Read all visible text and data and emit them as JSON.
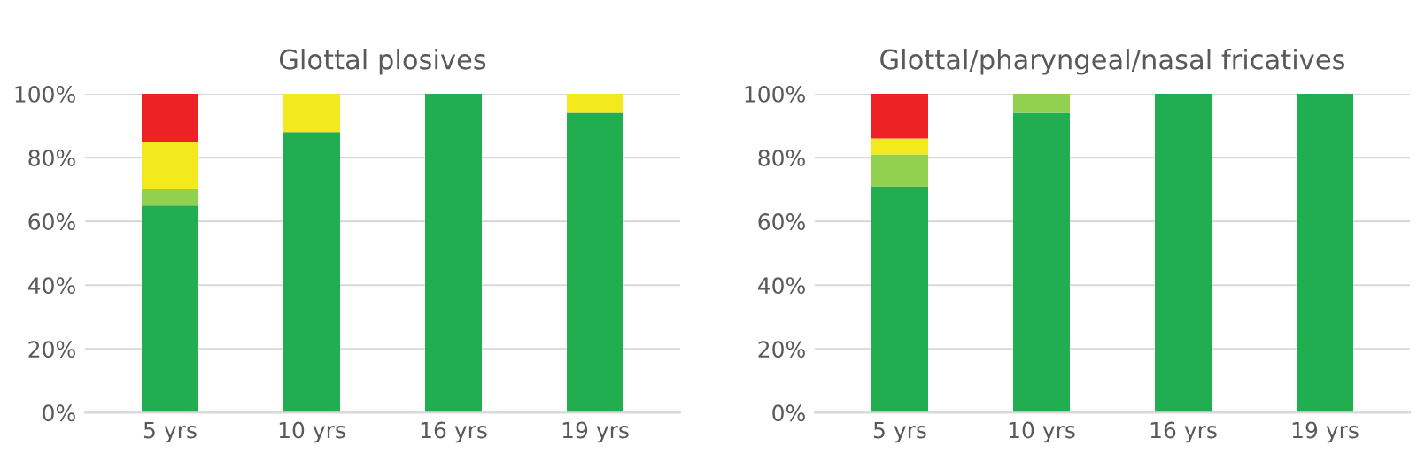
{
  "chart_data": [
    {
      "type": "bar",
      "title": "Glottal plosives",
      "stacked": true,
      "categories": [
        "5 yrs",
        "10 yrs",
        "16 yrs",
        "19 yrs"
      ],
      "series": [
        {
          "color": "#21ae50",
          "values": [
            65,
            88,
            100,
            94
          ]
        },
        {
          "color": "#92d050",
          "values": [
            5,
            null,
            null,
            null
          ]
        },
        {
          "color": "#f2ea1c",
          "values": [
            15,
            12,
            null,
            6
          ]
        },
        {
          "color": "#ed2224",
          "values": [
            15,
            null,
            null,
            null
          ]
        }
      ],
      "ylim": [
        0,
        100
      ],
      "yticks": [
        {
          "value": 0,
          "label": "0%"
        },
        {
          "value": 20,
          "label": "20%"
        },
        {
          "value": 40,
          "label": "40%"
        },
        {
          "value": 60,
          "label": "60%"
        },
        {
          "value": 80,
          "label": "80%"
        },
        {
          "value": 100,
          "label": "100%"
        }
      ],
      "grid": "y"
    },
    {
      "type": "bar",
      "title": "Glottal/pharyngeal/nasal fricatives",
      "stacked": true,
      "categories": [
        "5 yrs",
        "10 yrs",
        "16 yrs",
        "19 yrs"
      ],
      "series": [
        {
          "color": "#21ae50",
          "values": [
            71,
            94,
            100,
            100
          ]
        },
        {
          "color": "#92d050",
          "values": [
            10,
            6,
            null,
            null
          ]
        },
        {
          "color": "#f2ea1c",
          "values": [
            5,
            null,
            null,
            null
          ]
        },
        {
          "color": "#ed2224",
          "values": [
            14,
            null,
            null,
            null
          ]
        }
      ],
      "ylim": [
        0,
        100
      ],
      "yticks": [
        {
          "value": 0,
          "label": "0%"
        },
        {
          "value": 20,
          "label": "20%"
        },
        {
          "value": 40,
          "label": "40%"
        },
        {
          "value": 60,
          "label": "60%"
        },
        {
          "value": 80,
          "label": "80%"
        },
        {
          "value": 100,
          "label": "100%"
        }
      ],
      "grid": "y"
    }
  ]
}
